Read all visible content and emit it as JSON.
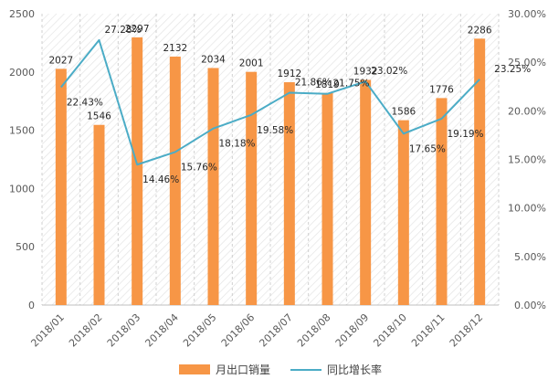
{
  "chart_data": {
    "type": "bar",
    "categories": [
      "2018/01",
      "2018/02",
      "2018/03",
      "2018/04",
      "2018/05",
      "2018/06",
      "2018/07",
      "2018/08",
      "2018/09",
      "2018/10",
      "2018/11",
      "2018/12"
    ],
    "series": [
      {
        "name": "月出口销量",
        "type": "bar",
        "axis": "left",
        "values": [
          2027,
          1546,
          2297,
          2132,
          2034,
          2001,
          1912,
          1819,
          1932,
          1586,
          1776,
          2286
        ],
        "labels": [
          "2027",
          "1546",
          "2297",
          "2132",
          "2034",
          "2001",
          "1912",
          "1819",
          "1932",
          "1586",
          "1776",
          "2286"
        ]
      },
      {
        "name": "同比增长率",
        "type": "line",
        "axis": "right",
        "values": [
          22.43,
          27.28,
          14.46,
          15.76,
          18.18,
          19.58,
          21.86,
          21.75,
          23.02,
          17.65,
          19.19,
          23.25
        ],
        "labels": [
          "22.43%",
          "27.28%",
          "14.46%",
          "15.76%",
          "18.18%",
          "19.58%",
          "21.86%",
          "21.75%",
          "23.02%",
          "17.65%",
          "19.19%",
          "23.25%"
        ]
      }
    ],
    "y_left": {
      "ylim": [
        0,
        2500
      ],
      "ticks": [
        0,
        500,
        1000,
        1500,
        2000,
        2500
      ],
      "tick_labels": [
        "0",
        "500",
        "1000",
        "1500",
        "2000",
        "2500"
      ]
    },
    "y_right": {
      "ylim": [
        0,
        30
      ],
      "ticks": [
        0,
        5,
        10,
        15,
        20,
        25,
        30
      ],
      "tick_labels": [
        "0.00%",
        "5.00%",
        "10.00%",
        "15.00%",
        "20.00%",
        "25.00%",
        "30.00%"
      ]
    },
    "grid": "vertical-dashed",
    "legend": "bottom",
    "colors": {
      "bar": "#f79646",
      "line": "#4bacc6",
      "grid": "#d0d0d0",
      "axis": "#bfbfbf",
      "hatch": "#e6e6e6"
    }
  }
}
